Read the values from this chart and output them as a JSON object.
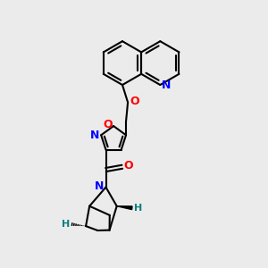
{
  "background_color": "#ebebeb",
  "bond_color": "#000000",
  "N_color": "#0000ff",
  "O_color": "#ff0000",
  "H_color": "#008080",
  "line_width": 1.5,
  "fig_width": 3.0,
  "fig_height": 3.0,
  "dpi": 100,
  "xlim": [
    0,
    10
  ],
  "ylim": [
    0,
    10
  ]
}
